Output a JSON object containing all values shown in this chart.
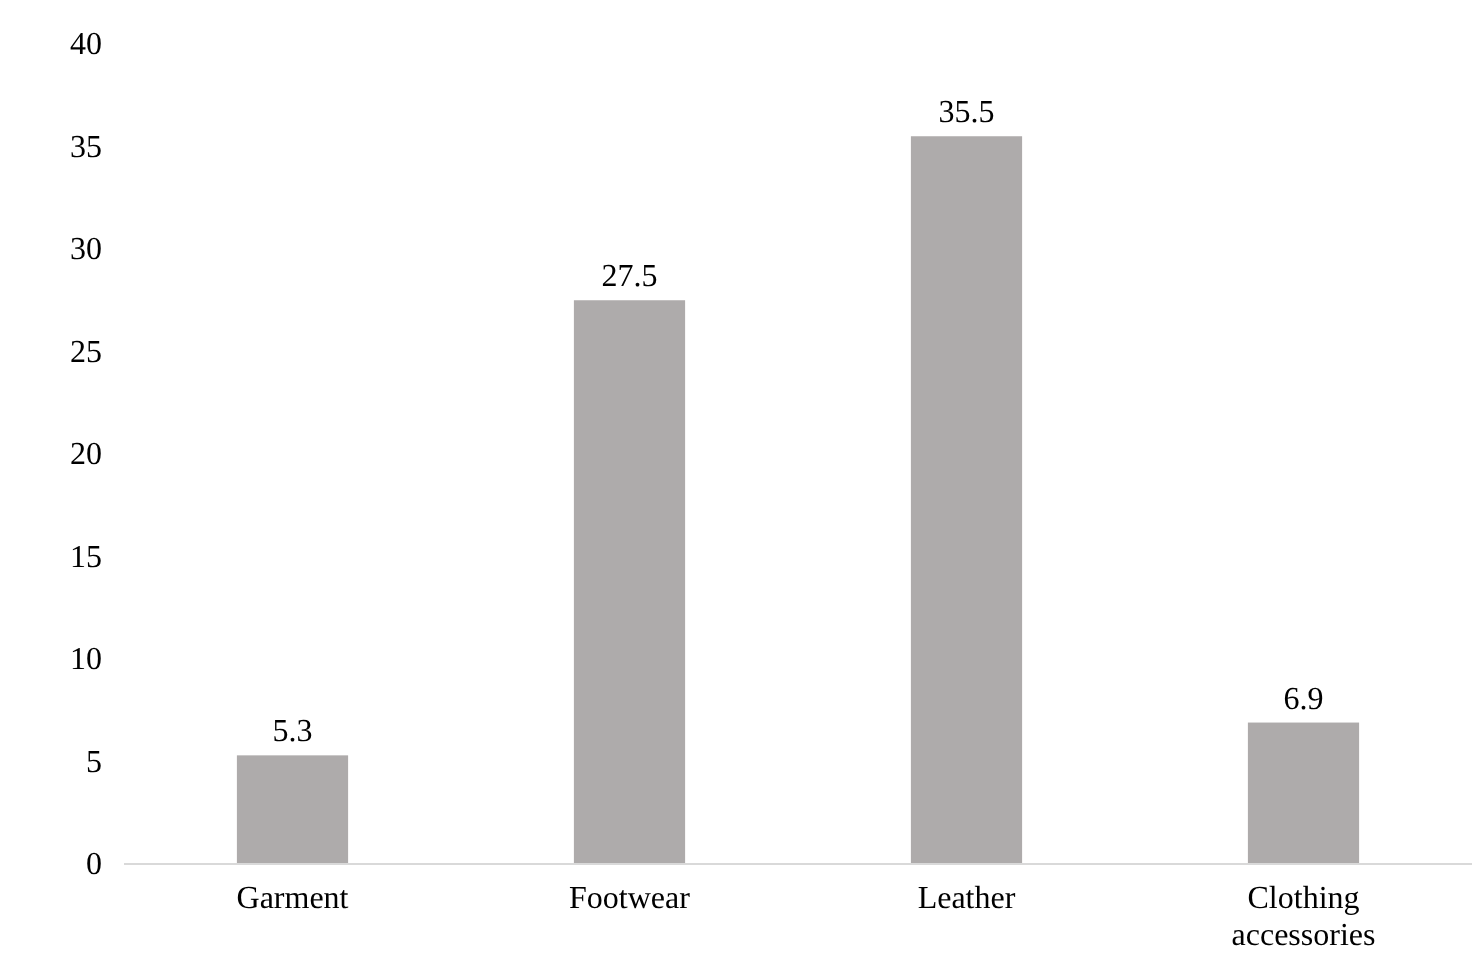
{
  "chart_data": {
    "type": "bar",
    "categories": [
      "Garment",
      "Footwear",
      "Leather",
      "Clothing accessories"
    ],
    "values": [
      5.3,
      27.5,
      35.5,
      6.9
    ],
    "color": "#aeabab",
    "ylim": [
      0,
      40
    ],
    "yticks": [
      0,
      5,
      10,
      15,
      20,
      25,
      30,
      35,
      40
    ],
    "data_labels": true,
    "grid": false
  }
}
